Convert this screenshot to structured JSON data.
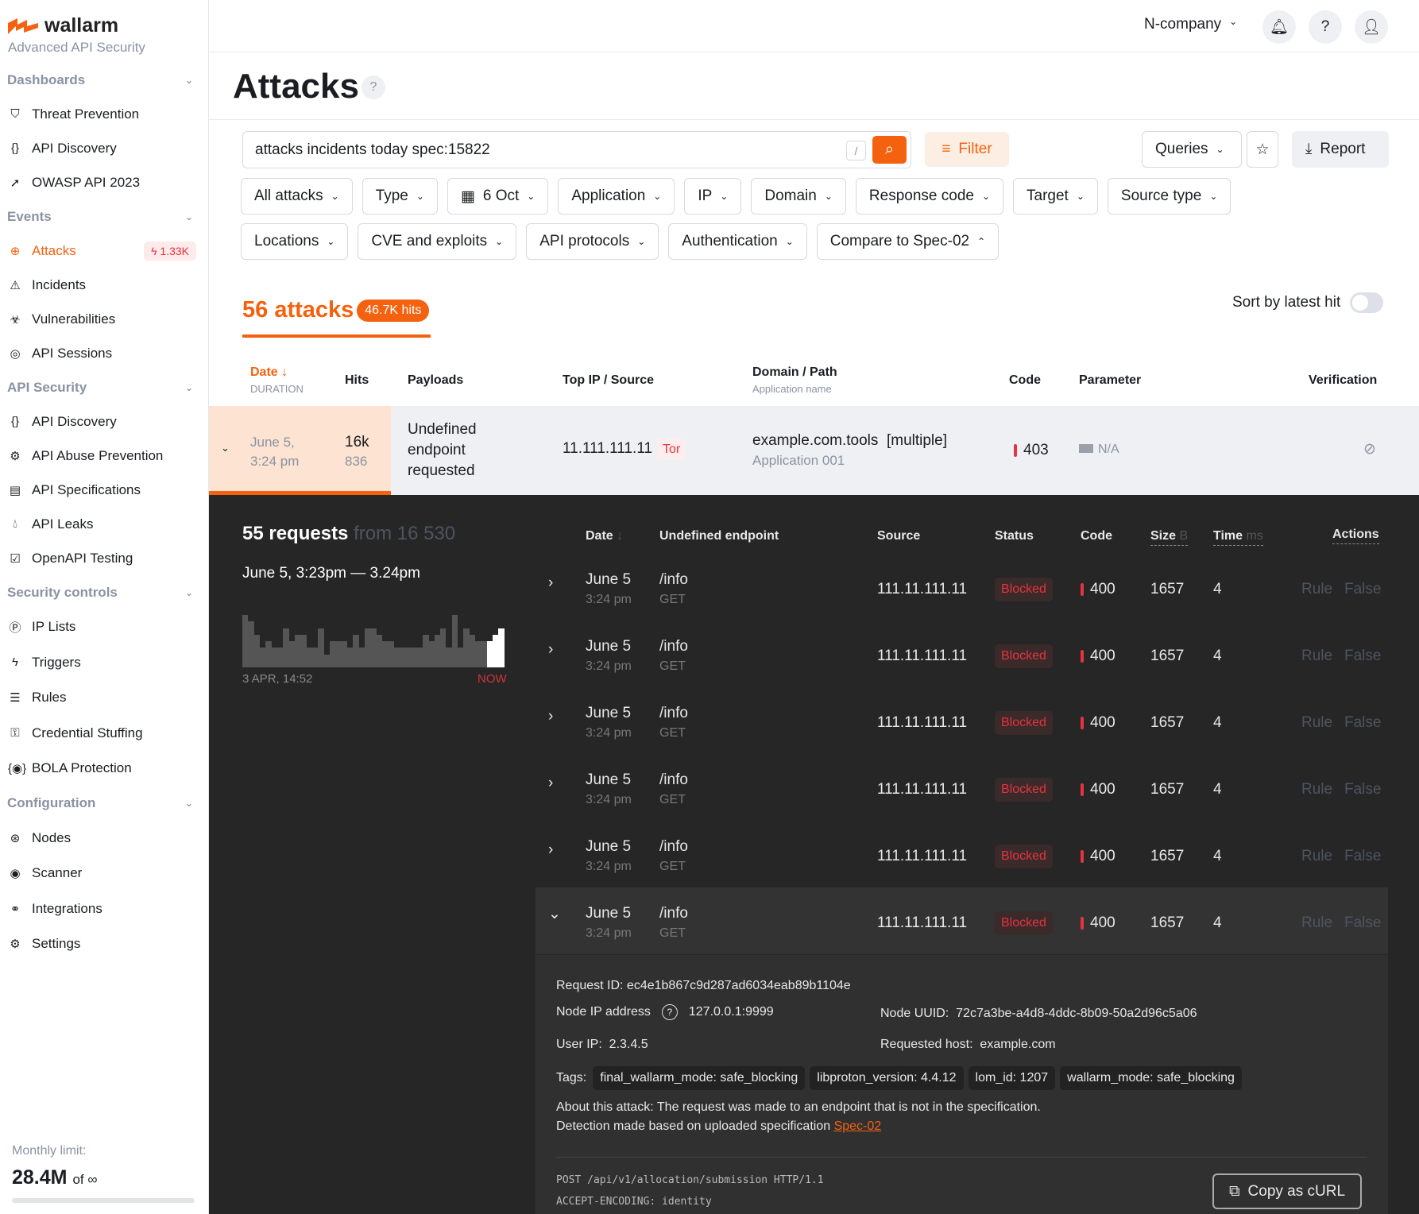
{
  "brand": {
    "name": "wallarm",
    "tagline": "Advanced API Security",
    "accent": "#f5620f"
  },
  "sidebar": {
    "sections": [
      {
        "label": "Dashboards",
        "items": [
          {
            "label": "Threat Prevention",
            "icon": "shield-bolt-icon"
          },
          {
            "label": "API Discovery",
            "icon": "braces-check-icon"
          },
          {
            "label": "OWASP API 2023",
            "icon": "arrow-icon"
          }
        ]
      },
      {
        "label": "Events",
        "items": [
          {
            "label": "Attacks",
            "icon": "target-icon",
            "active": true,
            "badge": "1.33K"
          },
          {
            "label": "Incidents",
            "icon": "warning-icon"
          },
          {
            "label": "Vulnerabilities",
            "icon": "biohazard-icon"
          },
          {
            "label": "API Sessions",
            "icon": "fingerprint-icon"
          }
        ]
      },
      {
        "label": "API Security",
        "items": [
          {
            "label": "API Discovery",
            "icon": "braces-check-icon"
          },
          {
            "label": "API Abuse Prevention",
            "icon": "bot-icon"
          },
          {
            "label": "API Specifications",
            "icon": "document-icon"
          },
          {
            "label": "API Leaks",
            "icon": "drop-icon"
          },
          {
            "label": "OpenAPI Testing",
            "icon": "test-icon"
          }
        ]
      },
      {
        "label": "Security controls",
        "items": [
          {
            "label": "IP Lists",
            "icon": "ip-icon"
          },
          {
            "label": "Triggers",
            "icon": "bolt-icon"
          },
          {
            "label": "Rules",
            "icon": "rules-icon"
          },
          {
            "label": "Credential Stuffing",
            "icon": "key-icon"
          },
          {
            "label": "BOLA Protection",
            "icon": "bola-icon"
          }
        ]
      },
      {
        "label": "Configuration",
        "items": [
          {
            "label": "Nodes",
            "icon": "nodes-icon"
          },
          {
            "label": "Scanner",
            "icon": "scanner-icon"
          },
          {
            "label": "Integrations",
            "icon": "integrations-icon"
          },
          {
            "label": "Settings",
            "icon": "gear-icon"
          }
        ]
      }
    ],
    "monthly_label": "Monthly limit:",
    "monthly_value": "28.4M",
    "monthly_of": "of ∞"
  },
  "topbar": {
    "company": "N-company"
  },
  "page": {
    "title": "Attacks"
  },
  "search": {
    "value": "attacks incidents today spec:15822",
    "shortcut": "/"
  },
  "toolbar": {
    "filter": "Filter",
    "queries": "Queries",
    "report": "Report"
  },
  "filters": [
    "All attacks",
    "Type",
    "6 Oct",
    "Application",
    "IP",
    "Domain",
    "Response code",
    "Target",
    "Source type",
    "Locations",
    "CVE and exploits",
    "API protocols",
    "Authentication",
    "Compare to Spec-02"
  ],
  "summary": {
    "count": "56 attacks",
    "hits": "46.7K hits",
    "sort_label": "Sort by latest hit",
    "sort_on": false
  },
  "table": {
    "headers": {
      "date": "Date",
      "duration": "DURATION",
      "hits": "Hits",
      "payloads": "Payloads",
      "top_ip": "Top IP / Source",
      "domain": "Domain / Path",
      "app": "Application name",
      "code": "Code",
      "parameter": "Parameter",
      "verification": "Verification"
    },
    "row": {
      "date": "June 5,",
      "time": "3:24 pm",
      "hits": "16k",
      "hits_sub": "836",
      "payload": "Undefined endpoint requested",
      "ip": "11.111.111.11",
      "source": "Tor",
      "domain": "example.com.tools  [multiple]",
      "app": "Application 001",
      "code": "403",
      "parameter": "N/A"
    }
  },
  "requests": {
    "count": "55 requests",
    "from": "from 16 530",
    "range": "June 5, 3:23pm — 3.24pm",
    "hist_start": "3 APR, 14:52",
    "hist_end": "NOW",
    "histogram": [
      8,
      7,
      5,
      3,
      4,
      3,
      3,
      6,
      4,
      5,
      5,
      3,
      3,
      6,
      2,
      4,
      4,
      4,
      3,
      5,
      3,
      6,
      6,
      5,
      4,
      4,
      3,
      3,
      3,
      3,
      3,
      5,
      4,
      5,
      6,
      3,
      8,
      3,
      6,
      5,
      4,
      4,
      4,
      5,
      6
    ],
    "histogram_highlight_from": 42,
    "headers": {
      "date": "Date",
      "endpoint": "Undefined endpoint",
      "source": "Source",
      "status": "Status",
      "code": "Code",
      "size": "Size",
      "size_unit": "B",
      "time": "Time",
      "time_unit": "ms",
      "actions": "Actions"
    },
    "rows": [
      {
        "date": "June 5",
        "time": "3:24 pm",
        "path": "/info",
        "method": "GET",
        "source": "111.11.111.11",
        "status": "Blocked",
        "code": "400",
        "size": "1657",
        "ms": "4",
        "rule": "Rule",
        "false": "False"
      },
      {
        "date": "June 5",
        "time": "3:24 pm",
        "path": "/info",
        "method": "GET",
        "source": "111.11.111.11",
        "status": "Blocked",
        "code": "400",
        "size": "1657",
        "ms": "4",
        "rule": "Rule",
        "false": "False"
      },
      {
        "date": "June 5",
        "time": "3:24 pm",
        "path": "/info",
        "method": "GET",
        "source": "111.11.111.11",
        "status": "Blocked",
        "code": "400",
        "size": "1657",
        "ms": "4",
        "rule": "Rule",
        "false": "False"
      },
      {
        "date": "June 5",
        "time": "3:24 pm",
        "path": "/info",
        "method": "GET",
        "source": "111.11.111.11",
        "status": "Blocked",
        "code": "400",
        "size": "1657",
        "ms": "4",
        "rule": "Rule",
        "false": "False"
      },
      {
        "date": "June 5",
        "time": "3:24 pm",
        "path": "/info",
        "method": "GET",
        "source": "111.11.111.11",
        "status": "Blocked",
        "code": "400",
        "size": "1657",
        "ms": "4",
        "rule": "Rule",
        "false": "False"
      },
      {
        "date": "June 5",
        "time": "3:24 pm",
        "path": "/info",
        "method": "GET",
        "source": "111.11.111.11",
        "status": "Blocked",
        "code": "400",
        "size": "1657",
        "ms": "4",
        "rule": "Rule",
        "false": "False",
        "expanded": true
      }
    ]
  },
  "detail": {
    "request_id": "Request ID: ec4e1b867c9d287ad6034eab89b1104e",
    "node_ip_label": "Node IP address",
    "node_ip": "127.0.0.1:9999",
    "node_uuid": "Node UUID:  72c7a3be-a4d8-4ddc-8b09-50a2d96c5a06",
    "user_ip": "User IP:  2.3.4.5",
    "host": "Requested host:  example.com",
    "tags_label": "Tags:",
    "tags": [
      "final_wallarm_mode: safe_blocking",
      "libproton_version: 4.4.12",
      "lom_id: 1207",
      "wallarm_mode: safe_blocking"
    ],
    "about": "About this attack: The request was made to an endpoint that is not in the specification.",
    "detection": "Detection made based on uploaded specification ",
    "spec_link": "Spec-02",
    "raw_line1": "POST /api/v1/allocation/submission HTTP/1.1",
    "raw_line2": "ACCEPT-ENCODING: identity",
    "copy": "Copy as cURL"
  }
}
